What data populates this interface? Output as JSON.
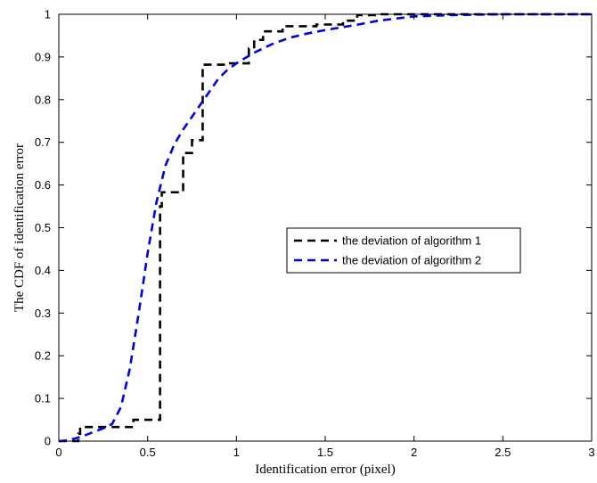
{
  "chart_data": {
    "type": "line",
    "title": "",
    "xlabel": "Identification error  (pixel)",
    "ylabel": "The CDF of identification error",
    "xlim": [
      0,
      3
    ],
    "ylim": [
      0,
      1
    ],
    "xticks": [
      0,
      0.5,
      1,
      1.5,
      2,
      2.5,
      3
    ],
    "xtick_labels": [
      "0",
      "0.5",
      "1",
      "1.5",
      "2",
      "2.5",
      "3"
    ],
    "yticks": [
      0,
      0.1,
      0.2,
      0.3,
      0.4,
      0.5,
      0.6,
      0.7,
      0.8,
      0.9,
      1
    ],
    "ytick_labels": [
      "0",
      "0.1",
      "0.2",
      "0.3",
      "0.4",
      "0.5",
      "0.6",
      "0.7",
      "0.8",
      "0.9",
      "1"
    ],
    "grid": false,
    "legend_position": "center-right",
    "series": [
      {
        "name": "the deviation of algorithm 1",
        "color": "#000000",
        "style": "dashed",
        "step": true,
        "x": [
          0,
          0.1,
          0.11,
          0.12,
          0.42,
          0.57,
          0.58,
          0.7,
          0.75,
          0.81,
          0.95,
          1.07,
          1.1,
          1.15,
          1.26,
          1.45,
          1.6,
          1.68,
          1.8,
          3.0
        ],
        "y": [
          0,
          0,
          0.017,
          0.033,
          0.05,
          0.55,
          0.583,
          0.675,
          0.705,
          0.882,
          0.885,
          0.92,
          0.94,
          0.96,
          0.972,
          0.976,
          0.985,
          0.998,
          1,
          1
        ]
      },
      {
        "name": "the deviation of algorithm 2",
        "color": "#0000e6",
        "style": "dashed",
        "step": false,
        "x": [
          0,
          0.05,
          0.1,
          0.15,
          0.2,
          0.25,
          0.3,
          0.35,
          0.4,
          0.45,
          0.5,
          0.55,
          0.6,
          0.65,
          0.7,
          0.75,
          0.8,
          0.85,
          0.9,
          0.95,
          1.0,
          1.1,
          1.2,
          1.3,
          1.4,
          1.5,
          1.6,
          1.7,
          1.8,
          2.0,
          2.2,
          2.5,
          3.0
        ],
        "y": [
          0,
          0.002,
          0.007,
          0.014,
          0.022,
          0.03,
          0.04,
          0.08,
          0.17,
          0.3,
          0.44,
          0.56,
          0.645,
          0.695,
          0.73,
          0.76,
          0.79,
          0.82,
          0.85,
          0.87,
          0.885,
          0.91,
          0.93,
          0.945,
          0.955,
          0.963,
          0.97,
          0.977,
          0.985,
          0.995,
          0.998,
          1,
          1
        ]
      }
    ]
  }
}
